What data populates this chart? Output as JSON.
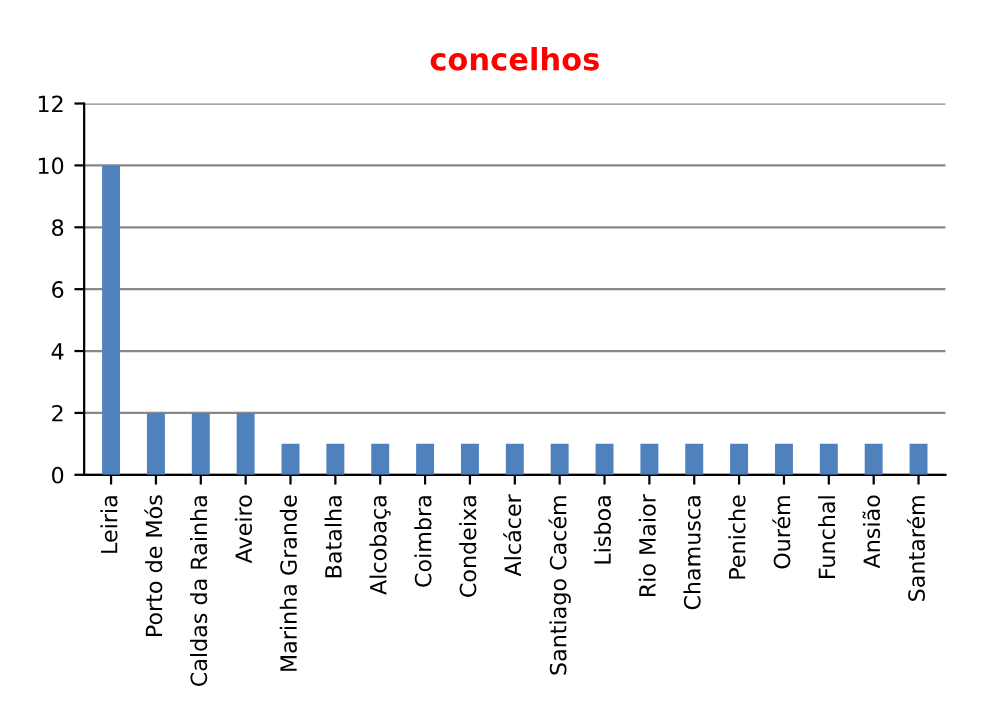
{
  "chart_data": {
    "type": "bar",
    "title": "concelhos",
    "categories": [
      "Leiria",
      "Porto de Mós",
      "Caldas da Rainha",
      "Aveiro",
      "Marinha Grande",
      "Batalha",
      "Alcobaça",
      "Coimbra",
      "Condeixa",
      "Alcácer",
      "Santiago Cacém",
      "Lisboa",
      "Rio Maior",
      "Chamusca",
      "Peniche",
      "Ourém",
      "Funchal",
      "Ansião",
      "Santarém"
    ],
    "values": [
      10,
      2,
      2,
      2,
      1,
      1,
      1,
      1,
      1,
      1,
      1,
      1,
      1,
      1,
      1,
      1,
      1,
      1,
      1
    ],
    "color": "#4f81bd",
    "ylim": [
      0,
      12
    ],
    "yticks": [
      0,
      2,
      4,
      6,
      8,
      10,
      12
    ],
    "grid": "y",
    "legend": false
  }
}
